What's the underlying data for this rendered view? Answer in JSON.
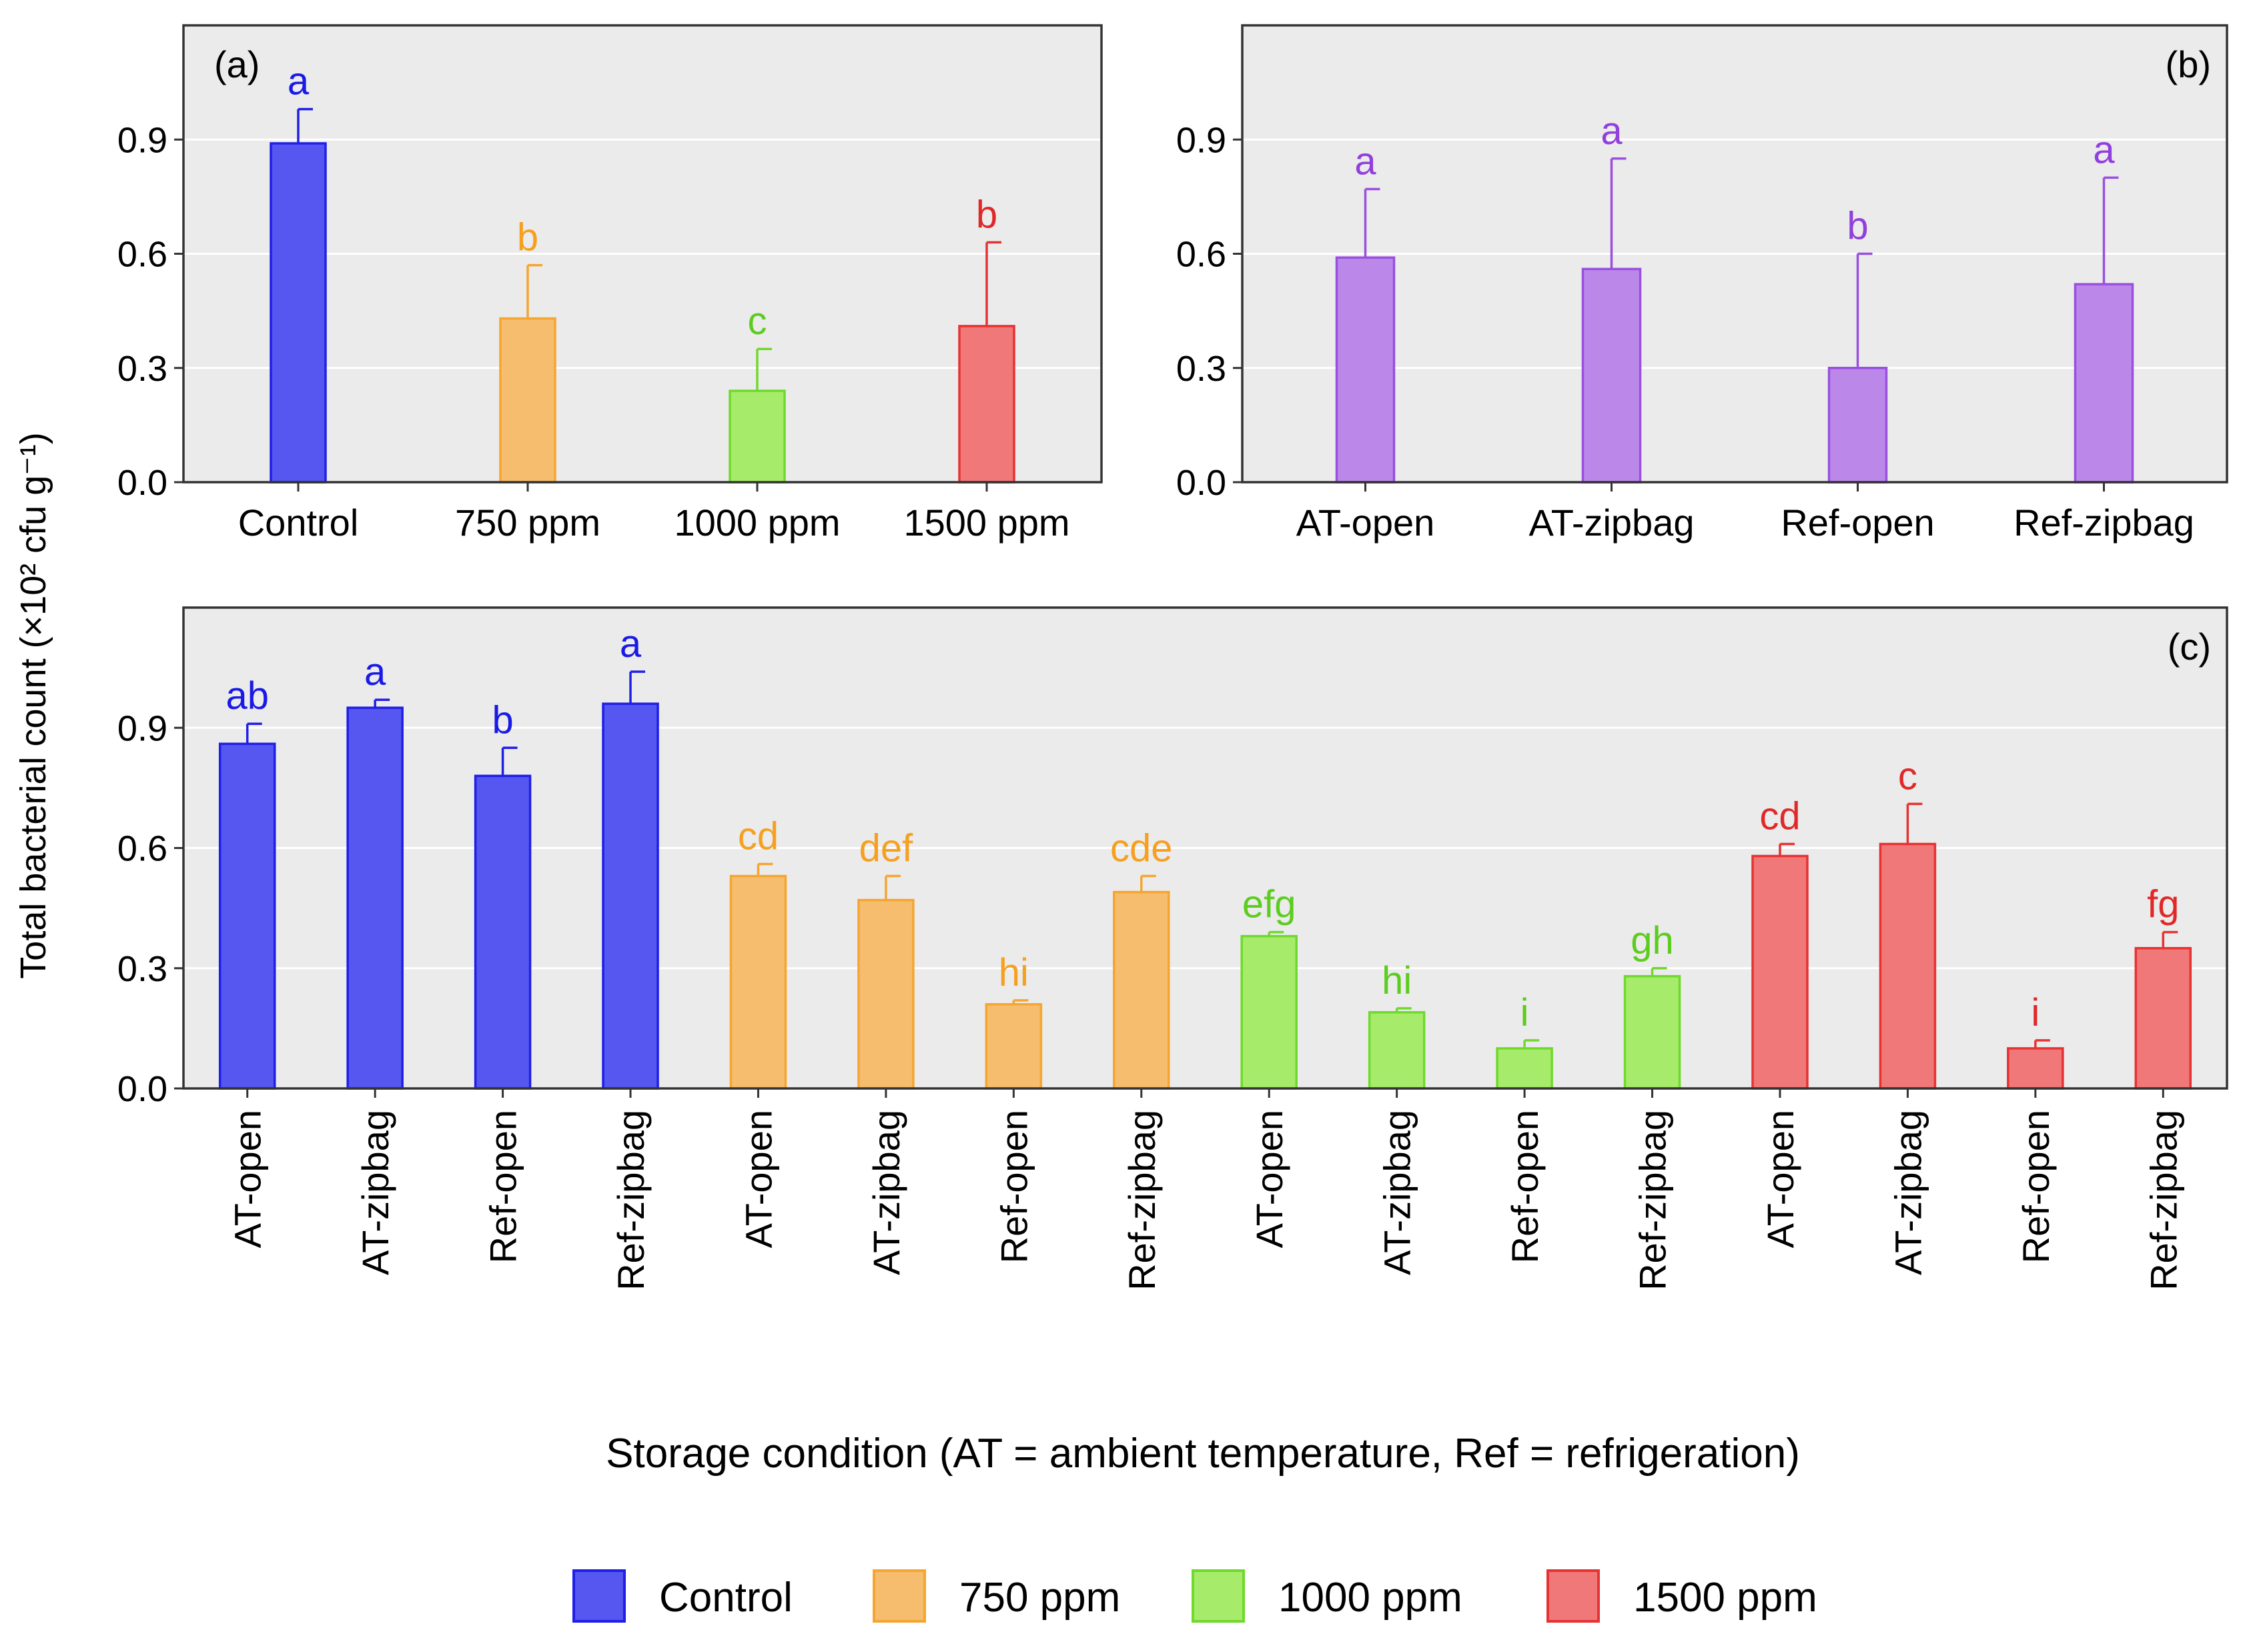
{
  "figure": {
    "y_axis_label": "Total bacterial count (×10² cfu g⁻¹)",
    "x_axis_label": "Storage condition (AT = ambient temperature, Ref = refrigeration)"
  },
  "colors": {
    "Control": {
      "fill": "#5656f0",
      "stroke": "#1f1fe6",
      "text": "#1a1ae6"
    },
    "750 ppm": {
      "fill": "#f6bd6e",
      "stroke": "#f5a530",
      "text": "#f5a020"
    },
    "1000 ppm": {
      "fill": "#a7eb6b",
      "stroke": "#6fd92c",
      "text": "#5ccc1e"
    },
    "1500 ppm": {
      "fill": "#f07878",
      "stroke": "#e63232",
      "text": "#e02828"
    },
    "Storage": {
      "fill": "#bb88ea",
      "stroke": "#9a4fe0",
      "text": "#9140dd"
    }
  },
  "legend": {
    "items": [
      {
        "label": "Control",
        "group": "Control"
      },
      {
        "label": "750 ppm",
        "group": "750 ppm"
      },
      {
        "label": "1000 ppm",
        "group": "1000 ppm"
      },
      {
        "label": "1500 ppm",
        "group": "1500 ppm"
      }
    ]
  },
  "chart_data": [
    {
      "panel": "(a)",
      "type": "bar",
      "categories": [
        "Control",
        "750 ppm",
        "1000 ppm",
        "1500 ppm"
      ],
      "values": [
        0.89,
        0.43,
        0.24,
        0.41
      ],
      "errors": [
        0.09,
        0.14,
        0.11,
        0.22
      ],
      "letters": [
        "a",
        "b",
        "c",
        "b"
      ],
      "groups": [
        "Control",
        "750 ppm",
        "1000 ppm",
        "1500 ppm"
      ],
      "ylim": [
        0,
        1.2
      ],
      "yticks": [
        0.0,
        0.3,
        0.6,
        0.9
      ],
      "ytick_labels": [
        "0.0",
        "0.3",
        "0.6",
        "0.9"
      ],
      "grid": true,
      "label_position": "top-left"
    },
    {
      "panel": "(b)",
      "type": "bar",
      "categories": [
        "AT-open",
        "AT-zipbag",
        "Ref-open",
        "Ref-zipbag"
      ],
      "values": [
        0.59,
        0.56,
        0.3,
        0.52
      ],
      "errors": [
        0.18,
        0.29,
        0.3,
        0.28
      ],
      "letters": [
        "a",
        "a",
        "b",
        "a"
      ],
      "groups": [
        "Storage",
        "Storage",
        "Storage",
        "Storage"
      ],
      "ylim": [
        0,
        1.2
      ],
      "yticks": [
        0.0,
        0.3,
        0.6,
        0.9
      ],
      "ytick_labels": [
        "0.0",
        "0.3",
        "0.6",
        "0.9"
      ],
      "grid": true,
      "label_position": "top-right"
    },
    {
      "panel": "(c)",
      "type": "bar",
      "categories": [
        "AT-open",
        "AT-zipbag",
        "Ref-open",
        "Ref-zipbag",
        "AT-open",
        "AT-zipbag",
        "Ref-open",
        "Ref-zipbag",
        "AT-open",
        "AT-zipbag",
        "Ref-open",
        "Ref-zipbag",
        "AT-open",
        "AT-zipbag",
        "Ref-open",
        "Ref-zipbag"
      ],
      "values": [
        0.86,
        0.95,
        0.78,
        0.96,
        0.53,
        0.47,
        0.21,
        0.49,
        0.38,
        0.19,
        0.1,
        0.28,
        0.58,
        0.61,
        0.1,
        0.35
      ],
      "errors": [
        0.05,
        0.02,
        0.07,
        0.08,
        0.03,
        0.06,
        0.01,
        0.04,
        0.01,
        0.01,
        0.02,
        0.02,
        0.03,
        0.1,
        0.02,
        0.04
      ],
      "letters": [
        "ab",
        "a",
        "b",
        "a",
        "cd",
        "def",
        "hi",
        "cde",
        "efg",
        "hi",
        "i",
        "gh",
        "cd",
        "c",
        "i",
        "fg"
      ],
      "groups": [
        "Control",
        "Control",
        "Control",
        "Control",
        "750 ppm",
        "750 ppm",
        "750 ppm",
        "750 ppm",
        "1000 ppm",
        "1000 ppm",
        "1000 ppm",
        "1000 ppm",
        "1500 ppm",
        "1500 ppm",
        "1500 ppm",
        "1500 ppm"
      ],
      "ylim": [
        0,
        1.2
      ],
      "yticks": [
        0.0,
        0.3,
        0.6,
        0.9
      ],
      "ytick_labels": [
        "0.0",
        "0.3",
        "0.6",
        "0.9"
      ],
      "grid": true,
      "label_position": "top-right"
    }
  ]
}
